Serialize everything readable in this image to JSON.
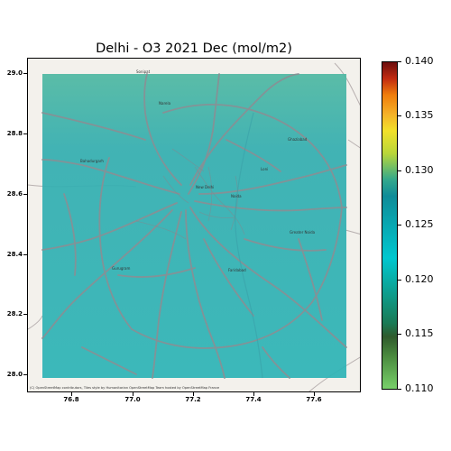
{
  "title": "Delhi - O3 2021 Dec (mol/m2)",
  "attribution": "(C) OpenStreetMap contributors, Tiles style by Humanitarian OpenStreetMap Team hosted by OpenStreetMap France",
  "map": {
    "x_ticks": [
      "76.8",
      "77.0",
      "77.2",
      "77.4",
      "77.6"
    ],
    "y_ticks": [
      "29.0",
      "28.8",
      "28.6",
      "28.4",
      "28.2",
      "28.0"
    ],
    "place_labels": [
      {
        "id": "bahadurgarh",
        "text": "Bahadurgarh"
      },
      {
        "id": "gurugram",
        "text": "Gurugram"
      },
      {
        "id": "noida",
        "text": "Noida"
      },
      {
        "id": "ghaziabad",
        "text": "Ghaziabad"
      },
      {
        "id": "faridabad",
        "text": "Faridabad"
      },
      {
        "id": "narela",
        "text": "Narela"
      },
      {
        "id": "loni",
        "text": "Loni"
      },
      {
        "id": "new-delhi",
        "text": "New Delhi"
      },
      {
        "id": "sonipat",
        "text": "Sonipat"
      },
      {
        "id": "greater-noida",
        "text": "Greater Noida"
      }
    ],
    "overlay_color": "#2fb0b0"
  },
  "colorbar": {
    "min": 0.11,
    "max": 0.14,
    "labels": [
      "0.140",
      "0.135",
      "0.130",
      "0.125",
      "0.120",
      "0.115",
      "0.110"
    ]
  }
}
